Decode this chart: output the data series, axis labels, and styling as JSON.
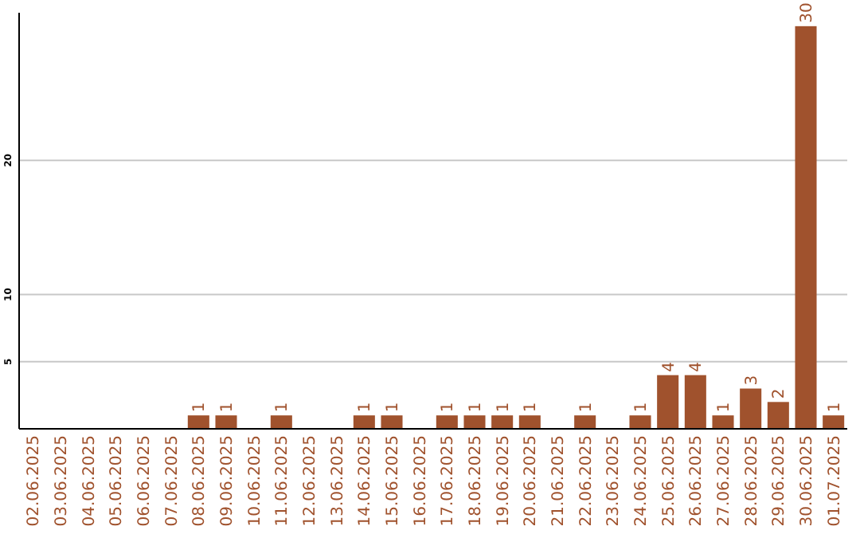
{
  "chart_data": {
    "type": "bar",
    "categories": [
      "02.06.2025",
      "03.06.2025",
      "04.06.2025",
      "05.06.2025",
      "06.06.2025",
      "07.06.2025",
      "08.06.2025",
      "09.06.2025",
      "10.06.2025",
      "11.06.2025",
      "12.06.2025",
      "13.06.2025",
      "14.06.2025",
      "15.06.2025",
      "16.06.2025",
      "17.06.2025",
      "18.06.2025",
      "19.06.2025",
      "20.06.2025",
      "21.06.2025",
      "22.06.2025",
      "23.06.2025",
      "24.06.2025",
      "25.06.2025",
      "26.06.2025",
      "27.06.2025",
      "28.06.2025",
      "29.06.2025",
      "30.06.2025",
      "01.07.2025"
    ],
    "values": [
      0,
      0,
      0,
      0,
      0,
      0,
      1,
      1,
      0,
      1,
      0,
      0,
      1,
      1,
      0,
      1,
      1,
      1,
      1,
      0,
      1,
      0,
      1,
      4,
      4,
      1,
      3,
      2,
      30,
      1
    ],
    "value_labels": [
      null,
      null,
      null,
      null,
      null,
      null,
      "1",
      "1",
      null,
      "1",
      null,
      null,
      "1",
      "1",
      null,
      "1",
      "1",
      "1",
      "1",
      null,
      "1",
      null,
      "1",
      "4",
      "4",
      "1",
      "3",
      "2",
      "30",
      "1"
    ],
    "color": "#a0522d",
    "ylim": [
      0,
      31
    ],
    "yticks": [
      5,
      10,
      20
    ],
    "grid": "y"
  }
}
